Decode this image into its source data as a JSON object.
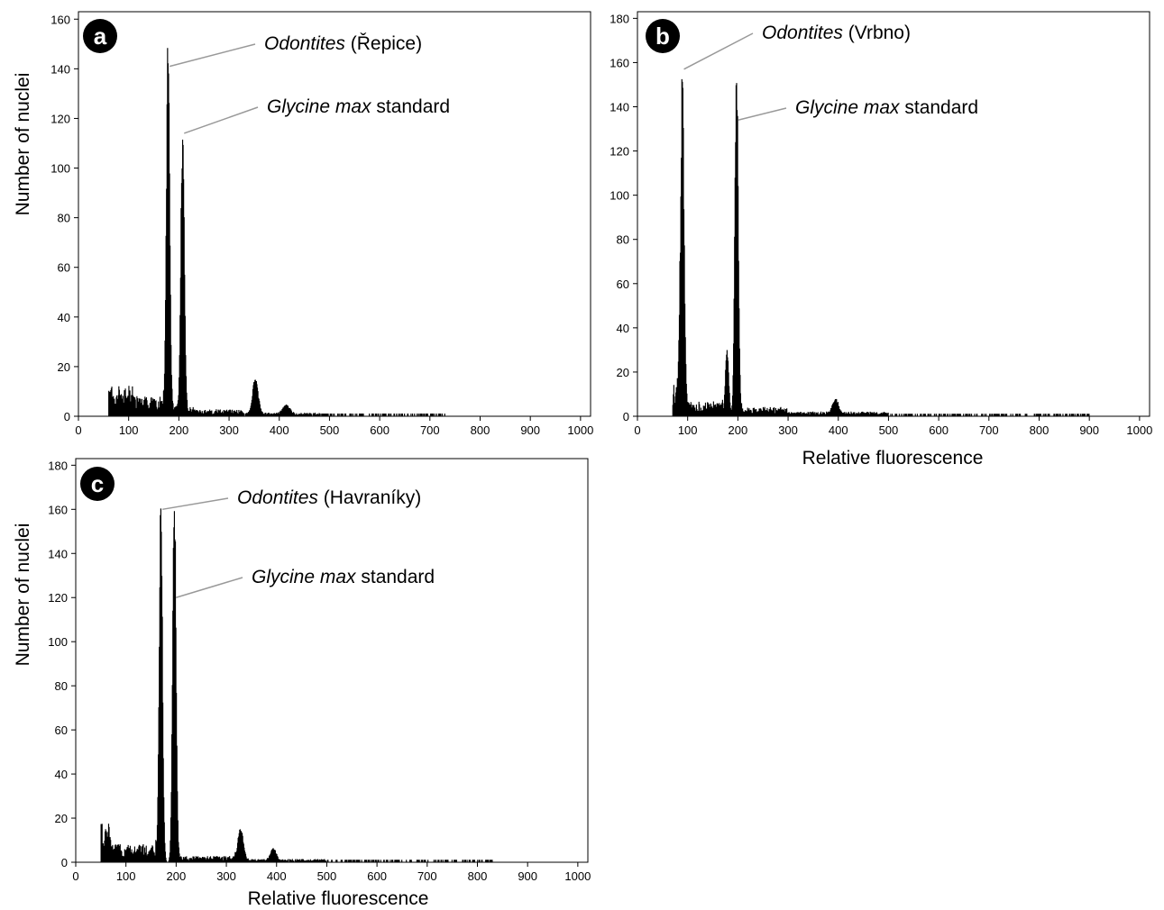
{
  "chart_data": [
    {
      "type": "bar",
      "panel_label": "a",
      "xlabel": "",
      "ylabel": "Number of nuclei",
      "xlim": [
        0,
        1020
      ],
      "ylim": [
        0,
        163
      ],
      "xticks": [
        0,
        100,
        200,
        300,
        400,
        500,
        600,
        700,
        800,
        900,
        1000
      ],
      "yticks": [
        0,
        20,
        40,
        60,
        80,
        100,
        120,
        140,
        160
      ],
      "grid": false,
      "peaks": [
        {
          "x": 178,
          "height": 153,
          "width": 5
        },
        {
          "x": 207,
          "height": 120,
          "width": 5
        },
        {
          "x": 352,
          "height": 15,
          "width": 8
        },
        {
          "x": 413,
          "height": 4,
          "width": 10
        }
      ],
      "background": [
        {
          "x": [
            60,
            110
          ],
          "level": 9
        },
        {
          "x": [
            110,
            170
          ],
          "level": 6
        },
        {
          "x": [
            170,
            230
          ],
          "level": 3
        },
        {
          "x": [
            230,
            330
          ],
          "level": 2
        },
        {
          "x": [
            330,
            480
          ],
          "level": 1
        },
        {
          "x": [
            480,
            730
          ],
          "level": 0.4
        }
      ],
      "annotations": [
        {
          "italic": "Odontites",
          "normal": " (Řepice)",
          "peak_x": 178,
          "peak_y": 141
        },
        {
          "italic": "Glycine max",
          "normal": " standard",
          "peak_x": 207,
          "peak_y": 114
        }
      ]
    },
    {
      "type": "bar",
      "panel_label": "b",
      "xlabel": "Relative fluorescence",
      "ylabel": "",
      "xlim": [
        0,
        1020
      ],
      "ylim": [
        0,
        183
      ],
      "xticks": [
        0,
        100,
        200,
        300,
        400,
        500,
        600,
        700,
        800,
        900,
        1000
      ],
      "yticks": [
        0,
        20,
        40,
        60,
        80,
        100,
        120,
        140,
        160,
        180
      ],
      "grid": false,
      "peaks": [
        {
          "x": 89,
          "height": 163,
          "width": 5
        },
        {
          "x": 197,
          "height": 164,
          "width": 5
        },
        {
          "x": 178,
          "height": 32,
          "width": 5
        },
        {
          "x": 394,
          "height": 7,
          "width": 8
        }
      ],
      "background": [
        {
          "x": [
            70,
            85
          ],
          "level": 12
        },
        {
          "x": [
            95,
            170
          ],
          "level": 5
        },
        {
          "x": [
            205,
            300
          ],
          "level": 3
        },
        {
          "x": [
            300,
            500
          ],
          "level": 1.5
        },
        {
          "x": [
            500,
            900
          ],
          "level": 0.4
        }
      ],
      "annotations": [
        {
          "italic": "Odontites",
          "normal": " (Vrbno)",
          "peak_x": 89,
          "peak_y": 157
        },
        {
          "italic": "Glycine max",
          "normal": " standard",
          "peak_x": 197,
          "peak_y": 134
        }
      ]
    },
    {
      "type": "bar",
      "panel_label": "c",
      "xlabel": "Relative fluorescence",
      "ylabel": "Number of nuclei",
      "xlim": [
        0,
        1020
      ],
      "ylim": [
        0,
        183
      ],
      "xticks": [
        0,
        100,
        200,
        300,
        400,
        500,
        600,
        700,
        800,
        900,
        1000
      ],
      "yticks": [
        0,
        20,
        40,
        60,
        80,
        100,
        120,
        140,
        160,
        180
      ],
      "grid": false,
      "peaks": [
        {
          "x": 169,
          "height": 166,
          "width": 5
        },
        {
          "x": 196,
          "height": 174,
          "width": 5
        },
        {
          "x": 328,
          "height": 15,
          "width": 8
        },
        {
          "x": 393,
          "height": 6,
          "width": 8
        }
      ],
      "background": [
        {
          "x": [
            50,
            70
          ],
          "level": 14
        },
        {
          "x": [
            70,
            160
          ],
          "level": 6
        },
        {
          "x": [
            205,
            320
          ],
          "level": 2
        },
        {
          "x": [
            320,
            500
          ],
          "level": 1
        },
        {
          "x": [
            500,
            830
          ],
          "level": 0.4
        }
      ],
      "annotations": [
        {
          "italic": "Odontites",
          "normal": " (Havraníky)",
          "peak_x": 169,
          "peak_y": 160
        },
        {
          "italic": "Glycine max",
          "normal": " standard",
          "peak_x": 196,
          "peak_y": 120
        }
      ]
    }
  ]
}
